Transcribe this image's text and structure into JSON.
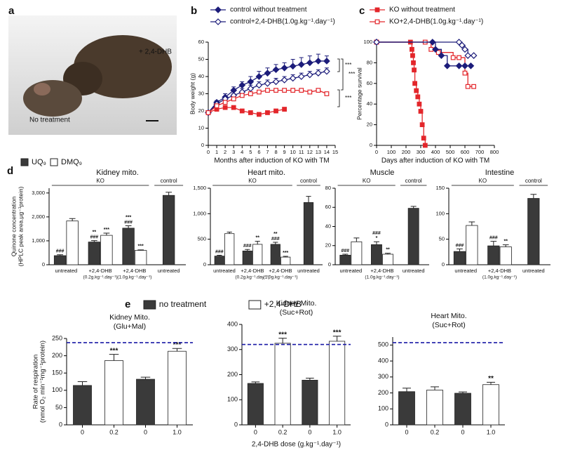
{
  "panel_labels": [
    "a",
    "b",
    "c",
    "d",
    "e"
  ],
  "photo_labels": [
    "+ 2,4-DHB",
    "No treatment"
  ],
  "chart_data": [
    {
      "type": "line",
      "ylabel": "Body weight (g)",
      "xlabel": "Months after induction of KO with TM",
      "x": [
        0,
        1,
        2,
        3,
        4,
        5,
        6,
        7,
        8,
        9,
        10,
        11,
        12,
        13,
        14
      ],
      "xlim": [
        0,
        15
      ],
      "xticks": [
        0,
        1,
        2,
        3,
        4,
        5,
        6,
        7,
        8,
        9,
        10,
        11,
        12,
        13,
        14,
        15
      ],
      "ylim": [
        0,
        60
      ],
      "yticks": [
        0,
        10,
        20,
        30,
        40,
        50,
        60
      ],
      "series": [
        {
          "name": "control without treatment",
          "color": "#1c1c7a",
          "marker": "diamond",
          "filled": true,
          "values": [
            19,
            25,
            28,
            32,
            35,
            37,
            40,
            42,
            44,
            45,
            46,
            47,
            48,
            49,
            49
          ],
          "errors": [
            1,
            1,
            2,
            2,
            2,
            3,
            3,
            3,
            3,
            3,
            4,
            4,
            4,
            4,
            3
          ]
        },
        {
          "name": "control+2,4-DHB(1.0g.kg⁻¹.day⁻¹)",
          "color": "#1c1c7a",
          "marker": "diamond",
          "filled": false,
          "values": [
            19,
            24,
            27,
            29,
            31,
            33,
            35,
            36,
            37,
            38,
            39,
            40,
            41,
            42,
            43
          ],
          "errors": [
            1,
            1,
            1,
            1,
            2,
            2,
            2,
            2,
            2,
            2,
            2,
            2,
            2,
            2,
            2
          ]
        },
        {
          "color": "#e3262b",
          "marker": "square",
          "filled": true,
          "values": [
            19,
            21,
            22,
            22,
            20,
            19,
            18,
            19,
            20,
            21,
            null,
            null,
            null,
            null,
            null
          ]
        },
        {
          "color": "#e3262b",
          "marker": "square",
          "filled": false,
          "values": [
            19,
            23,
            25,
            27,
            29,
            30,
            31,
            32,
            32,
            32,
            32,
            32,
            31,
            32,
            30
          ]
        }
      ],
      "annotations": [
        "***",
        "***",
        "***"
      ]
    },
    {
      "type": "line",
      "steps": true,
      "ylabel": "Percentage survival",
      "xlabel": "Days after induction of KO with TM",
      "xlim": [
        0,
        800
      ],
      "xticks": [
        0,
        100,
        200,
        300,
        400,
        500,
        600,
        700,
        800
      ],
      "ylim": [
        0,
        100
      ],
      "yticks": [
        0,
        20,
        40,
        60,
        80,
        100
      ],
      "series": [
        {
          "name": "KO without  treatment",
          "color": "#e3262b",
          "marker": "square",
          "filled": true,
          "x": [
            0,
            230,
            240,
            245,
            250,
            255,
            260,
            270,
            280,
            290,
            300,
            310,
            320,
            330
          ],
          "values": [
            100,
            100,
            93,
            87,
            80,
            73,
            60,
            53,
            47,
            40,
            33,
            20,
            7,
            0
          ]
        },
        {
          "name": "KO+2,4-DHB(1.0g.kg⁻¹.day⁻¹)",
          "color": "#e3262b",
          "marker": "square",
          "filled": false,
          "x": [
            0,
            330,
            370,
            420,
            520,
            560,
            600,
            620,
            660
          ],
          "values": [
            100,
            100,
            93,
            90,
            85,
            85,
            70,
            57,
            57
          ]
        },
        {
          "color": "#1c1c7a",
          "marker": "diamond",
          "filled": true,
          "x": [
            0,
            380,
            400,
            440,
            480,
            560,
            600,
            640
          ],
          "values": [
            100,
            100,
            93,
            87,
            77,
            77,
            77,
            77
          ]
        },
        {
          "color": "#1c1c7a",
          "marker": "diamond",
          "filled": false,
          "x": [
            0,
            560,
            580,
            600,
            620,
            660
          ],
          "values": [
            100,
            100,
            97,
            93,
            87,
            87
          ]
        }
      ]
    },
    {
      "type": "bar",
      "title": "Kidney mito.",
      "ylabel": [
        "Quinone concentration",
        "(HPLC peak area.µg⁻¹protein)"
      ],
      "groups": [
        "KO",
        "control"
      ],
      "categories": [
        "untreated",
        "+2,4-DHB",
        "+2,4-DHB",
        "untreated"
      ],
      "category_notes": [
        null,
        "(0.2g.kg⁻¹.day⁻¹)",
        "(1.0g.kg⁻¹.day⁻¹)",
        null
      ],
      "ylim": [
        0,
        3200
      ],
      "yticks": [
        0,
        {
          "value": 1000,
          "label": "1,000"
        },
        {
          "value": 2000,
          "label": "2,000"
        },
        {
          "value": 3000,
          "label": "3,000"
        }
      ],
      "series": [
        {
          "name": "UQ₉",
          "color": "#3a3a3a",
          "values": [
            380,
            950,
            1530,
            2900
          ],
          "errors": [
            40,
            60,
            100,
            130
          ],
          "labels": [
            [
              "###"
            ],
            [
              "**",
              "###"
            ],
            [
              "***",
              "###"
            ],
            null
          ]
        },
        {
          "name": "DMQ₉",
          "color": "#ffffff",
          "values": [
            1830,
            1230,
            600,
            null
          ],
          "errors": [
            100,
            90,
            20,
            null
          ],
          "labels": [
            null,
            [
              "***"
            ],
            [
              "***"
            ],
            null
          ]
        }
      ]
    },
    {
      "type": "bar",
      "title": "Heart mito.",
      "groups": [
        "KO",
        "control"
      ],
      "categories": [
        "untreated",
        "+2,4-DHB",
        "+2,4-DHB",
        "untreated"
      ],
      "category_notes": [
        null,
        "(0.2g.kg⁻¹.day⁻¹)",
        "(1.0g.kg⁻¹.day⁻¹)",
        null
      ],
      "ylim": [
        0,
        1500
      ],
      "yticks": [
        0,
        500,
        {
          "value": 1000,
          "label": "1,000"
        },
        {
          "value": 1500,
          "label": "1,500"
        }
      ],
      "series": [
        {
          "color": "#3a3a3a",
          "values": [
            170,
            270,
            400,
            1220
          ],
          "errors": [
            15,
            30,
            40,
            120
          ],
          "labels": [
            [
              "###"
            ],
            [
              "###"
            ],
            [
              "**",
              "###"
            ],
            null
          ]
        },
        {
          "color": "#ffffff",
          "values": [
            610,
            400,
            150,
            null
          ],
          "errors": [
            30,
            60,
            15,
            null
          ],
          "labels": [
            null,
            [
              "**"
            ],
            [
              "***"
            ],
            null
          ]
        }
      ]
    },
    {
      "type": "bar",
      "title": "Muscle",
      "groups": [
        "KO",
        "control"
      ],
      "categories": [
        "untreated",
        "+2,4-DHB",
        "untreated"
      ],
      "category_notes": [
        null,
        "(1.0g.kg⁻¹.day⁻¹)",
        null
      ],
      "ylim": [
        0,
        80
      ],
      "yticks": [
        0,
        20,
        40,
        60,
        80
      ],
      "series": [
        {
          "color": "#3a3a3a",
          "values": [
            10,
            21,
            59
          ],
          "errors": [
            1,
            3,
            2
          ],
          "labels": [
            [
              "###"
            ],
            [
              "###",
              "*"
            ],
            null
          ]
        },
        {
          "color": "#ffffff",
          "values": [
            24,
            11,
            null
          ],
          "errors": [
            4,
            1,
            null
          ],
          "labels": [
            null,
            [
              "**"
            ],
            null
          ]
        }
      ]
    },
    {
      "type": "bar",
      "title": "Intestine",
      "groups": [
        "KO",
        "control"
      ],
      "categories": [
        "untreated",
        "+2,4-DHB",
        "untreated"
      ],
      "category_notes": [
        null,
        "(1.0g.kg⁻¹.day⁻¹)",
        null
      ],
      "ylim": [
        0,
        150
      ],
      "yticks": [
        0,
        50,
        100,
        150
      ],
      "series": [
        {
          "color": "#3a3a3a",
          "values": [
            26,
            37,
            130
          ],
          "errors": [
            5,
            9,
            8
          ],
          "labels": [
            [
              "###"
            ],
            [
              "###"
            ],
            null
          ]
        },
        {
          "color": "#ffffff",
          "values": [
            77,
            35,
            null
          ],
          "errors": [
            7,
            4,
            null
          ],
          "labels": [
            null,
            [
              "**"
            ],
            null
          ]
        }
      ]
    },
    {
      "type": "bar",
      "title": [
        "Kidney Mito.",
        "(Glu+Mal)"
      ],
      "ylabel": [
        "Rate of respiration",
        "(nmol O₂ min⁻¹mg⁻¹protein)"
      ],
      "categories": [
        "0",
        "0.2",
        "0",
        "1.0"
      ],
      "ylim": [
        0,
        250
      ],
      "yticks": [
        0,
        50,
        100,
        150,
        200,
        250
      ],
      "reference": 238,
      "reference_color": "#1a1aa6",
      "series": [
        {
          "name": "no treatment",
          "color": "#3a3a3a",
          "values": [
            114,
            null,
            132,
            null
          ],
          "errors": [
            11,
            null,
            6,
            null
          ]
        },
        {
          "name": "+2,4-DHB",
          "color": "#ffffff",
          "values": [
            null,
            186,
            null,
            213
          ],
          "errors": [
            null,
            18,
            null,
            8
          ],
          "labels": [
            null,
            [
              "***"
            ],
            null,
            [
              "***"
            ]
          ]
        }
      ]
    },
    {
      "type": "bar",
      "title": [
        "Kidney Mito.",
        "(Suc+Rot)"
      ],
      "xlabel": "2,4-DHB dose (g.kg⁻¹.day⁻¹)",
      "categories": [
        "0",
        "0.2",
        "0",
        "1.0"
      ],
      "ylim": [
        0,
        400
      ],
      "yticks": [
        0,
        100,
        200,
        300,
        400
      ],
      "reference": 320,
      "reference_color": "#1a1aa6",
      "series": [
        {
          "color": "#3a3a3a",
          "values": [
            165,
            null,
            178,
            null
          ],
          "errors": [
            6,
            null,
            8,
            null
          ]
        },
        {
          "color": "#ffffff",
          "values": [
            null,
            325,
            null,
            333
          ],
          "errors": [
            null,
            20,
            null,
            20
          ],
          "labels": [
            null,
            [
              "***"
            ],
            null,
            [
              "***"
            ]
          ]
        }
      ]
    },
    {
      "type": "bar",
      "title": [
        "Heart Mito.",
        "(Suc+Rot)"
      ],
      "categories": [
        "0",
        "0.2",
        "0",
        "1.0"
      ],
      "ylim": [
        0,
        550
      ],
      "yticks": [
        0,
        100,
        200,
        300,
        400,
        500
      ],
      "reference": 515,
      "reference_color": "#1a1aa6",
      "series": [
        {
          "color": "#3a3a3a",
          "values": [
            208,
            null,
            198,
            null
          ],
          "errors": [
            22,
            null,
            8,
            null
          ]
        },
        {
          "color": "#ffffff",
          "values": [
            null,
            218,
            null,
            252
          ],
          "errors": [
            null,
            20,
            null,
            15
          ],
          "labels": [
            null,
            null,
            null,
            [
              "**"
            ]
          ]
        }
      ]
    }
  ]
}
